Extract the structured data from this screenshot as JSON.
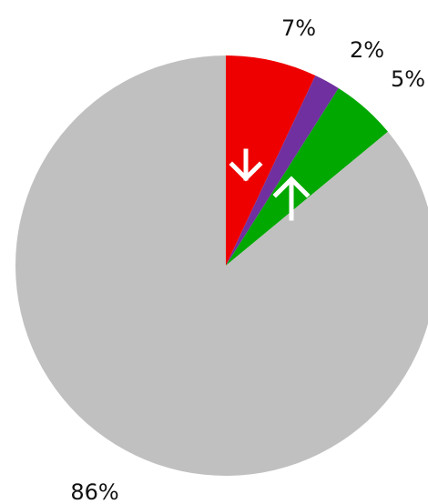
{
  "chart_data": {
    "type": "pie",
    "values": [
      7,
      2,
      5,
      86
    ],
    "value_labels": [
      "7%",
      "2%",
      "5%",
      "86%"
    ],
    "colors": [
      "#ee0000",
      "#7030a0",
      "#00a800",
      "#c0c0c0"
    ]
  }
}
